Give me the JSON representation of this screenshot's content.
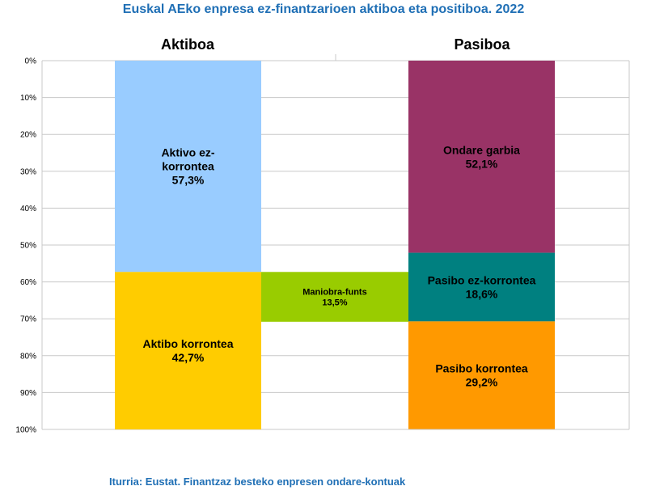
{
  "title": "Euskal AEko enpresa ez-finantzarioen aktiboa eta positiboa. 2022",
  "source": "Iturria: Eustat. Finantzaz besteko enpresen ondare-kontuak",
  "colors": {
    "title": "#1f6fb5",
    "grid": "#c8c8c8"
  },
  "chart_data": {
    "type": "bar",
    "stacked": true,
    "title": "Euskal AEko enpresa ez-finantzarioen aktiboa eta positiboa. 2022",
    "categories": [
      "Aktiboa",
      "Pasiboa"
    ],
    "yaxis": {
      "range": [
        0,
        100
      ],
      "reversed": true,
      "ticks": [
        "0%",
        "10%",
        "20%",
        "30%",
        "40%",
        "50%",
        "60%",
        "70%",
        "80%",
        "90%",
        "100%"
      ]
    },
    "grid": true,
    "series": [
      {
        "category": "Aktiboa",
        "name_lines": [
          "Aktivo ez-",
          "korrontea"
        ],
        "value_label": "57,3%",
        "value": 57.3,
        "start": 0,
        "color": "#99ccff"
      },
      {
        "category": "Aktiboa",
        "name_lines": [
          "Aktibo korrontea"
        ],
        "value_label": "42,7%",
        "value": 42.7,
        "start": 57.3,
        "color": "#ffcc00"
      },
      {
        "category": "Pasiboa",
        "name_lines": [
          "Ondare garbia"
        ],
        "value_label": "52,1%",
        "value": 52.1,
        "start": 0,
        "color": "#993366"
      },
      {
        "category": "Pasiboa",
        "name_lines": [
          "Pasibo ez-korrontea"
        ],
        "value_label": "18,6%",
        "value": 18.6,
        "start": 52.1,
        "color": "#008080"
      },
      {
        "category": "Pasiboa",
        "name_lines": [
          "Pasibo korrontea"
        ],
        "value_label": "29,2%",
        "value": 29.2,
        "start": 70.7,
        "color": "#ff9900"
      },
      {
        "category": "between",
        "name_lines": [
          "Maniobra-funts"
        ],
        "value_label": "13,5%",
        "value": 13.5,
        "start": 57.3,
        "color": "#99cc00",
        "small": true
      }
    ]
  }
}
